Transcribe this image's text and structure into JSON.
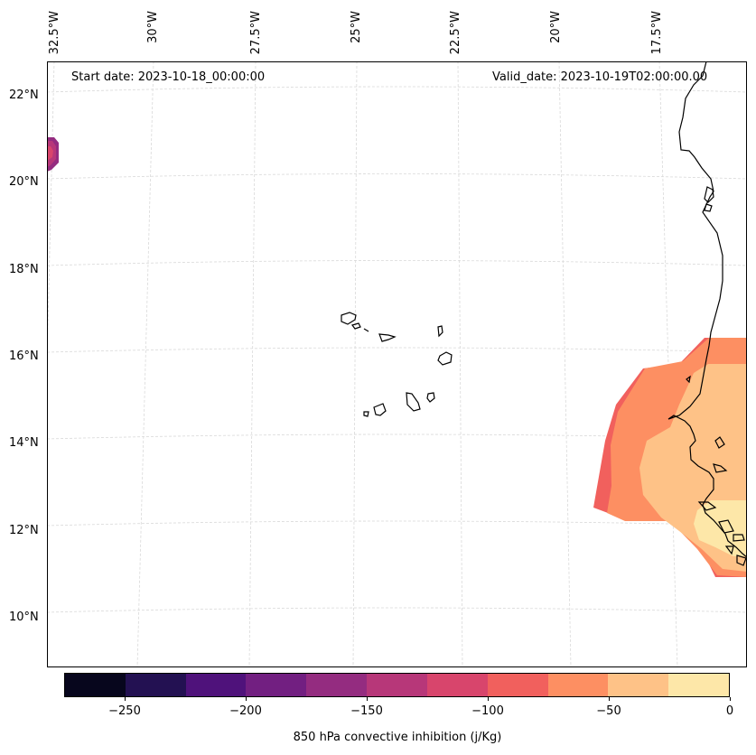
{
  "map": {
    "start_date": "Start date: 2023-10-18_00:00:00",
    "valid_date": "Valid_date: 2023-10-19T02:00:00.00",
    "lon_labels": [
      "32.5°W",
      "30°W",
      "27.5°W",
      "25°W",
      "22.5°W",
      "20°W",
      "17.5°W"
    ],
    "lat_labels": [
      "22°N",
      "20°N",
      "18°N",
      "16°N",
      "14°N",
      "12°N",
      "10°N"
    ]
  },
  "colorbar": {
    "label": "850 hPa convective inhibition (j/Kg)",
    "ticks": [
      "−250",
      "−200",
      "−150",
      "−100",
      "−50",
      "0"
    ],
    "min": -275,
    "max": 0,
    "step": 25,
    "colors": [
      "#07061d",
      "#231152",
      "#4f127b",
      "#721f81",
      "#942c80",
      "#b73779",
      "#d8456c",
      "#f1605d",
      "#fd8f62",
      "#fec287",
      "#fde7a8"
    ]
  },
  "colors": {
    "cin_high": "#fde7a8",
    "cin_mid": "#fec287",
    "cin_low": "#fd8f62",
    "cin_lower": "#f1605d",
    "coast": "#000000",
    "grid": "#d9d9d9"
  }
}
